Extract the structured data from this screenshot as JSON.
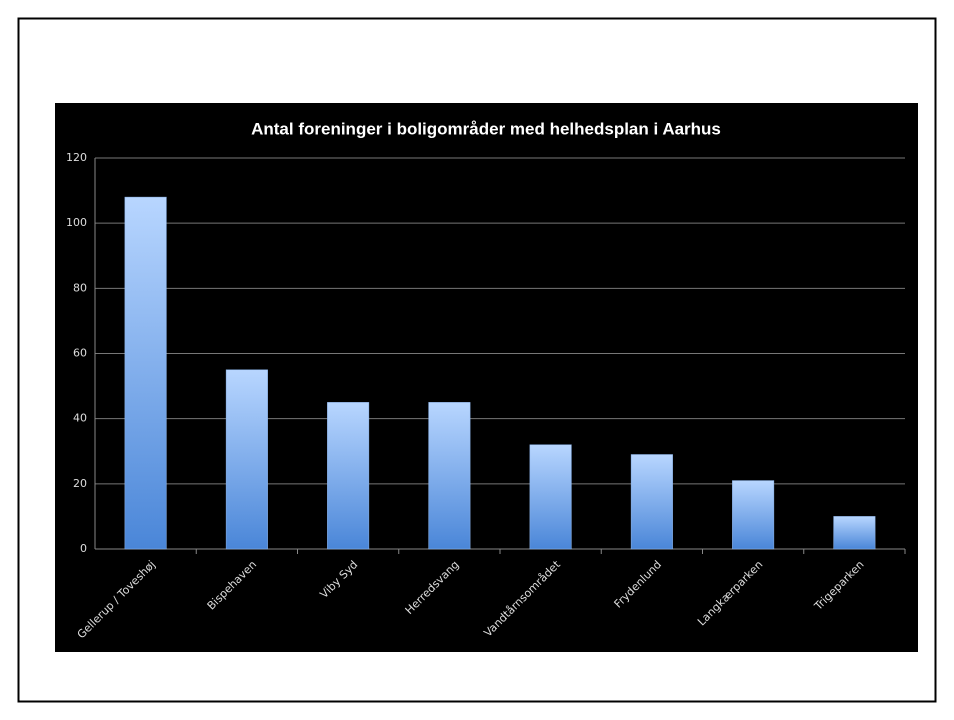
{
  "chart_data": {
    "type": "bar",
    "title": "Antal foreninger i boligområder med helhedsplan i Aarhus",
    "categories": [
      "Gellerup / Toveshøj",
      "Bispehaven",
      "Viby Syd",
      "Herredsvang",
      "Vandtårnsområdet",
      "Frydenlund",
      "Langkærparken",
      "Trigeparken"
    ],
    "values": [
      108,
      55,
      45,
      45,
      32,
      29,
      21,
      10
    ],
    "color": "#4a86d8",
    "ylim": [
      0,
      120
    ],
    "yticks": [
      0,
      20,
      40,
      60,
      80,
      100,
      120
    ],
    "grid": true
  }
}
